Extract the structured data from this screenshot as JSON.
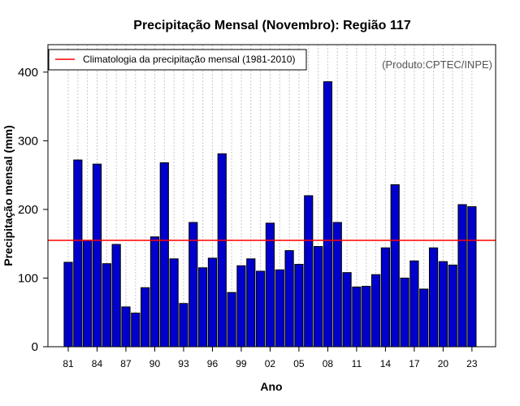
{
  "chart_data": {
    "type": "bar",
    "title": "Precipitação Mensal (Novembro): Região 117",
    "xlabel": "Ano",
    "ylabel": "Precipitação mensal (mm)",
    "credit": "(Produto:CPTEC/INPE)",
    "legend": {
      "label": "Climatologia da precipitação mensal (1981-2010)",
      "placement": "top-left"
    },
    "categories": [
      "81",
      "82",
      "83",
      "84",
      "85",
      "86",
      "87",
      "88",
      "89",
      "90",
      "91",
      "92",
      "93",
      "94",
      "95",
      "96",
      "97",
      "98",
      "99",
      "00",
      "01",
      "02",
      "03",
      "04",
      "05",
      "06",
      "07",
      "08",
      "09",
      "10",
      "11",
      "12",
      "13",
      "14",
      "15",
      "16",
      "17",
      "18",
      "19",
      "20",
      "21",
      "22",
      "23"
    ],
    "values": [
      123,
      272,
      155,
      266,
      121,
      149,
      58,
      49,
      86,
      160,
      268,
      128,
      63,
      181,
      115,
      129,
      281,
      79,
      118,
      128,
      110,
      180,
      112,
      140,
      120,
      220,
      146,
      386,
      181,
      108,
      87,
      88,
      105,
      144,
      236,
      100,
      125,
      84,
      144,
      124,
      119,
      207,
      204
    ],
    "xtick_labels": [
      "81",
      "84",
      "87",
      "90",
      "93",
      "96",
      "99",
      "02",
      "05",
      "08",
      "11",
      "14",
      "17",
      "20",
      "23"
    ],
    "yticks": [
      0,
      100,
      200,
      300,
      400
    ],
    "ylim": [
      0,
      440
    ],
    "climatology": 155,
    "colors": {
      "bar": "#0000cc",
      "climatology": "#ff0000",
      "grid": "#c8c8c8"
    }
  }
}
